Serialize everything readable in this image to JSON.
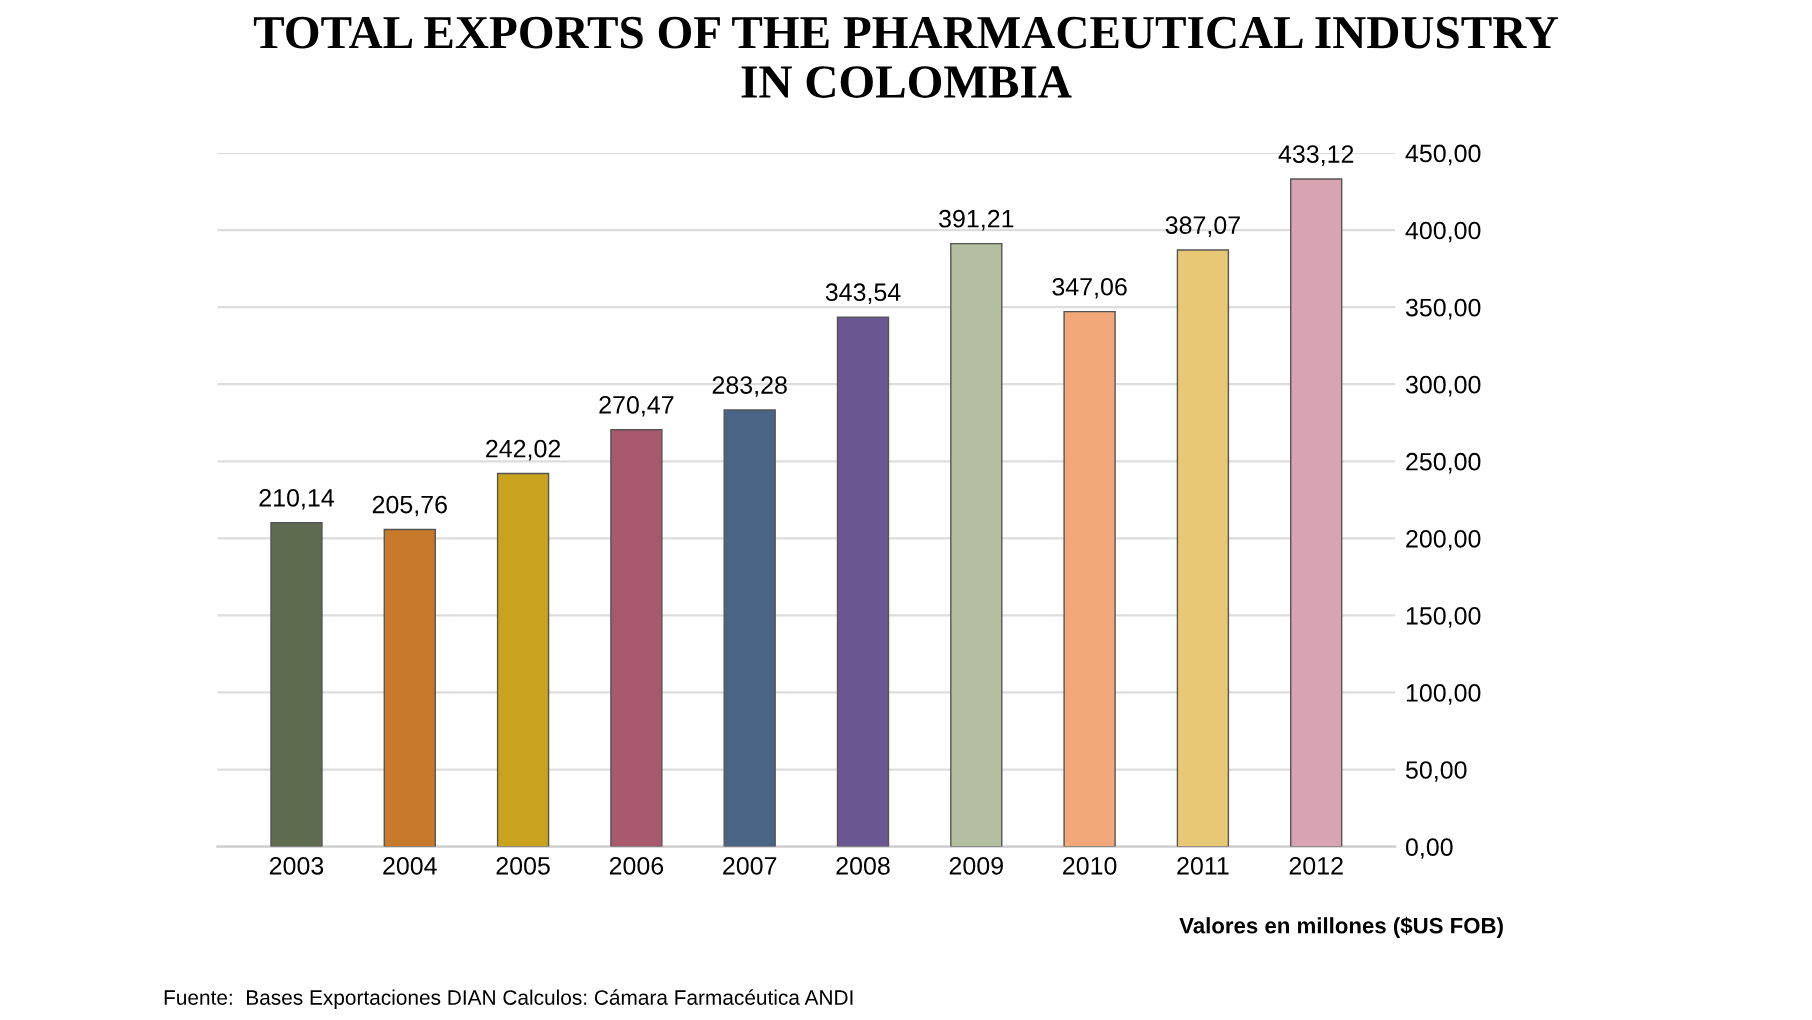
{
  "chart_data": {
    "type": "bar",
    "title": "TOTAL EXPORTS OF THE PHARMACEUTICAL INDUSTRY\nIN COLOMBIA",
    "categories": [
      "2003",
      "2004",
      "2005",
      "2006",
      "2007",
      "2008",
      "2009",
      "2010",
      "2011",
      "2012"
    ],
    "values": [
      210.14,
      205.76,
      242.02,
      270.47,
      283.28,
      343.54,
      391.21,
      347.06,
      387.07,
      433.12
    ],
    "value_labels": [
      "210,14",
      "205,76",
      "242,02",
      "270,47",
      "283,28",
      "343,54",
      "391,21",
      "347,06",
      "387,07",
      "433,12"
    ],
    "colors": [
      "#5f6b4f",
      "#c87a2a",
      "#c9a21e",
      "#a8596e",
      "#4a6486",
      "#6a5690",
      "#b4bea0",
      "#f2a878",
      "#e8c874",
      "#d8a4b4"
    ],
    "ylim": [
      0,
      450
    ],
    "yticks": [
      {
        "value": 0,
        "label": "0,00"
      },
      {
        "value": 50,
        "label": "50,00"
      },
      {
        "value": 100,
        "label": "100,00"
      },
      {
        "value": 150,
        "label": "150,00"
      },
      {
        "value": 200,
        "label": "200,00"
      },
      {
        "value": 250,
        "label": "250,00"
      },
      {
        "value": 300,
        "label": "300,00"
      },
      {
        "value": 350,
        "label": "350,00"
      },
      {
        "value": 400,
        "label": "400,00"
      },
      {
        "value": 450,
        "label": "450,00"
      }
    ],
    "grid": "y",
    "annotations": [
      "Valores en millones ($US FOB)",
      "Fuente:  Bases Exportaciones DIAN Calculos: Cámara Farmacéutica ANDI"
    ]
  }
}
